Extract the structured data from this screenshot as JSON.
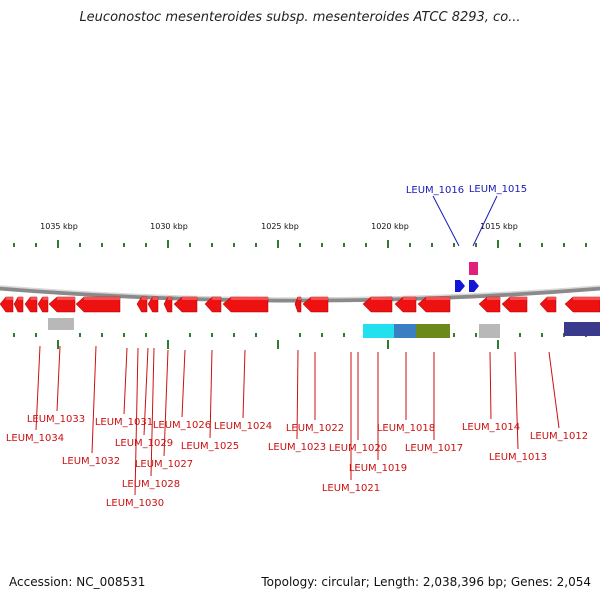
{
  "title": "Leuconostoc mesenteroides subsp. mesenteroides ATCC 8293, co...",
  "footer": {
    "accession": "Accession: NC_008531",
    "summary": "Topology: circular; Length: 2,038,396 bp; Genes: 2,054"
  },
  "scale": {
    "ticks": [
      "1035 kbp",
      "1030 kbp",
      "1025 kbp",
      "1020 kbp",
      "1015 kbp"
    ]
  },
  "genes_top": [
    "LEUM_1016",
    "LEUM_1015"
  ],
  "genes_bottom": [
    "LEUM_1033",
    "LEUM_1034",
    "LEUM_1032",
    "LEUM_1031",
    "LEUM_1029",
    "LEUM_1030",
    "LEUM_1028",
    "LEUM_1027",
    "LEUM_1026",
    "LEUM_1025",
    "LEUM_1024",
    "LEUM_1023",
    "LEUM_1022",
    "LEUM_1021",
    "LEUM_1020",
    "LEUM_1019",
    "LEUM_1018",
    "LEUM_1017",
    "LEUM_1014",
    "LEUM_1013",
    "LEUM_1012"
  ],
  "colors": {
    "gene_red": "#ee1111",
    "label_red": "#cc1111",
    "label_blue": "#1a1ab8",
    "tick_green": "#2e7d2e",
    "backbone": "#8a8a8a",
    "feature_cyan": "#22e0ee",
    "feature_blue": "#3b7fc2",
    "feature_olive": "#6b8a1c",
    "feature_grey": "#b8b8b8",
    "feature_navy": "#3a3a8c",
    "feature_pink": "#e0207a",
    "feature_blue_arrow": "#1515d8"
  }
}
